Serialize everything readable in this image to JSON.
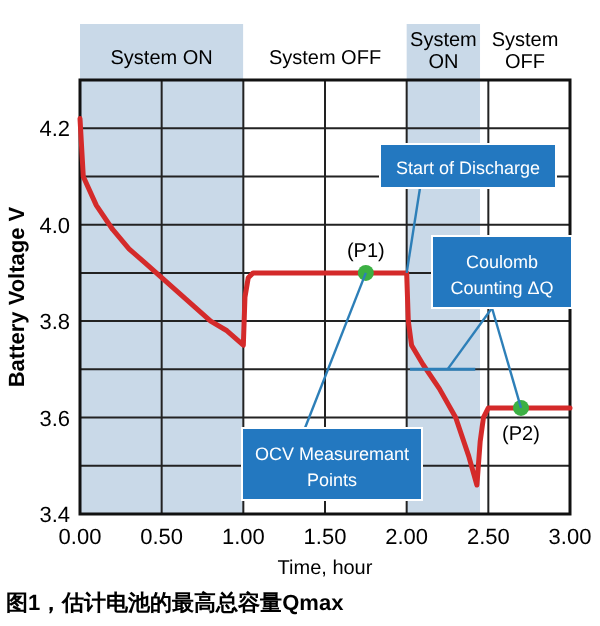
{
  "chart_data": {
    "type": "line",
    "xlabel": "Time, hour",
    "ylabel": "Battery Voltage V",
    "xlim": [
      0,
      3
    ],
    "ylim": [
      3.4,
      4.3
    ],
    "xticks": [
      {
        "value": 0,
        "label": "0.00"
      },
      {
        "value": 0.5,
        "label": "0.50"
      },
      {
        "value": 1,
        "label": "1.00"
      },
      {
        "value": 1.5,
        "label": "1.50"
      },
      {
        "value": 2,
        "label": "2.00"
      },
      {
        "value": 2.5,
        "label": "2.50"
      },
      {
        "value": 3,
        "label": "3.00"
      }
    ],
    "yticks": [
      3.4,
      {
        "value": 3.5,
        "label": null
      },
      3.6,
      {
        "value": 3.7,
        "label": null
      },
      3.8,
      {
        "value": 3.9,
        "label": null
      },
      {
        "value": 4.0,
        "label": "4.0"
      },
      {
        "value": 4.1,
        "label": null
      },
      4.2
    ],
    "grid": true,
    "series": [
      {
        "type": "line",
        "color": "#d42a2a",
        "marker": "none",
        "x": [
          0,
          0.02,
          0.1,
          0.2,
          0.3,
          0.4,
          0.5,
          0.6,
          0.7,
          0.8,
          0.9,
          1.0,
          1.01,
          1.03,
          1.06,
          1.5,
          1.75,
          2.0,
          2.01,
          2.03,
          2.1,
          2.2,
          2.3,
          2.38,
          2.43,
          2.45,
          2.47,
          2.5,
          2.7,
          3.0
        ],
        "values": [
          4.22,
          4.1,
          4.04,
          3.99,
          3.95,
          3.92,
          3.89,
          3.86,
          3.83,
          3.8,
          3.78,
          3.75,
          3.85,
          3.89,
          3.9,
          3.9,
          3.9,
          3.9,
          3.8,
          3.75,
          3.71,
          3.66,
          3.6,
          3.52,
          3.46,
          3.55,
          3.6,
          3.62,
          3.62,
          3.62
        ]
      },
      {
        "type": "scatter",
        "color": "#3cb043",
        "marker": "circle",
        "x": [
          1.75,
          2.7
        ],
        "values": [
          3.9,
          3.62
        ]
      }
    ],
    "bands": [
      {
        "axis": "x",
        "from": 0,
        "to": 1,
        "label": "System ON",
        "color": "#c9d9e8"
      },
      {
        "axis": "x",
        "from": 1,
        "to": 2,
        "label": "System OFF",
        "color": "#ffffff"
      },
      {
        "axis": "x",
        "from": 2,
        "to": 2.45,
        "label": "System ON",
        "color": "#c9d9e8"
      },
      {
        "axis": "x",
        "from": 2.45,
        "to": 3,
        "label": "System OFF",
        "color": "#ffffff"
      }
    ],
    "annotations": [
      {
        "text": "(P1)",
        "x": 1.75,
        "y": 3.9
      },
      {
        "text": "(P2)",
        "x": 2.7,
        "y": 3.62
      },
      {
        "text": "Start of Discharge",
        "x": 2.0,
        "y": 3.9
      },
      {
        "text": "Coulomb Counting ΔQ",
        "x": 2.7,
        "y": 3.62
      },
      {
        "text": "OCV Measuremant Points",
        "x": 1.75,
        "y": 3.9
      },
      "图1，估计电池的最高总容量Qmax"
    ]
  }
}
